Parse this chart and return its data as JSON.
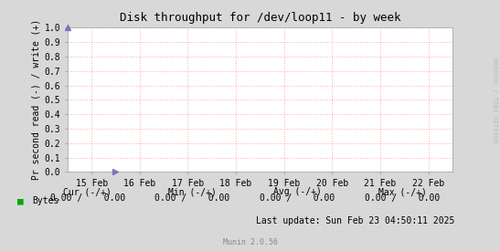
{
  "title": "Disk throughput for /dev/loop11 - by week",
  "ylabel": "Pr second read (-) / write (+)",
  "xlabel_ticks": [
    "15 Feb",
    "16 Feb",
    "17 Feb",
    "18 Feb",
    "19 Feb",
    "20 Feb",
    "21 Feb",
    "22 Feb"
  ],
  "ylim": [
    0.0,
    1.0
  ],
  "yticks": [
    0.0,
    0.1,
    0.2,
    0.3,
    0.4,
    0.5,
    0.6,
    0.7,
    0.8,
    0.9,
    1.0
  ],
  "bg_color": "#d8d8d8",
  "plot_bg_color": "#ffffff",
  "grid_color": "#ffaaaa",
  "title_color": "#000000",
  "tick_color": "#000000",
  "legend_label": "Bytes",
  "legend_color": "#00aa00",
  "watermark": "RRDTOOL / TOBI OETIKER",
  "last_update": "Last update: Sun Feb 23 04:50:11 2025",
  "munin_version": "Munin 2.0.56",
  "arrow_color": "#7777bb",
  "spine_color": "#aaaaaa",
  "stats_header": [
    "Cur (-/+)",
    "Min (-/+)",
    "Avg (-/+)",
    "Max (-/+)"
  ],
  "stats_values": [
    "0.00 /    0.00",
    "0.00 /    0.00",
    "0.00 /    0.00",
    "0.00 /    0.00"
  ]
}
